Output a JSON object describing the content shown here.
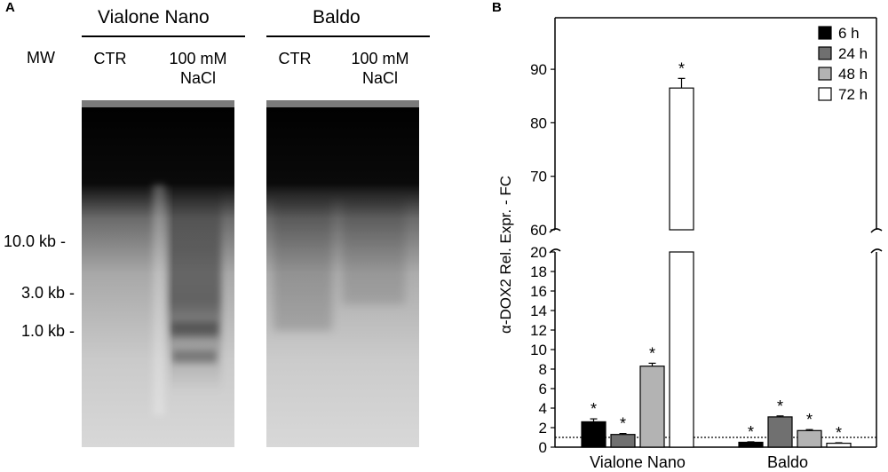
{
  "panelA": {
    "letter": "A",
    "varieties": [
      {
        "name": "Vialone Nano",
        "lanes": [
          "CTR",
          "100 mM\nNaCl"
        ]
      },
      {
        "name": "Baldo",
        "lanes": [
          "CTR",
          "100 mM\nNaCl"
        ]
      }
    ],
    "mw_label": "MW",
    "markers": [
      "10.0 kb -",
      "3.0 kb -",
      "1.0 kb -"
    ]
  },
  "panelB": {
    "letter": "B"
  },
  "chart_data": {
    "type": "bar",
    "ylabel": "α-DOX2 Rel. Expr. - FC",
    "categories": [
      "Vialone Nano",
      "Baldo"
    ],
    "series": [
      {
        "name": "6 h",
        "color": "#000000",
        "values": [
          2.6,
          0.5
        ],
        "errors": [
          0.3,
          0.05
        ],
        "significant": [
          true,
          true
        ]
      },
      {
        "name": "24 h",
        "color": "#707070",
        "values": [
          1.3,
          3.1
        ],
        "errors": [
          0.1,
          0.1
        ],
        "significant": [
          true,
          true
        ]
      },
      {
        "name": "48 h",
        "color": "#b3b3b3",
        "values": [
          8.3,
          1.7
        ],
        "errors": [
          0.3,
          0.1
        ],
        "significant": [
          true,
          true
        ]
      },
      {
        "name": "72 h",
        "color": "#ffffff",
        "values": [
          86.5,
          0.4
        ],
        "errors": [
          1.8,
          0.05
        ],
        "significant": [
          true,
          true
        ]
      }
    ],
    "significance_marker": "*",
    "reference_line": 1,
    "axis_break": true,
    "y_lower": {
      "range": [
        0,
        20
      ],
      "ticks": [
        "0",
        "2",
        "4",
        "6",
        "8",
        "10",
        "12",
        "14",
        "16",
        "18",
        "20"
      ]
    },
    "y_upper": {
      "range": [
        60,
        90
      ],
      "ticks": [
        "60",
        "70",
        "80",
        "90"
      ]
    },
    "legend": "top-right"
  }
}
